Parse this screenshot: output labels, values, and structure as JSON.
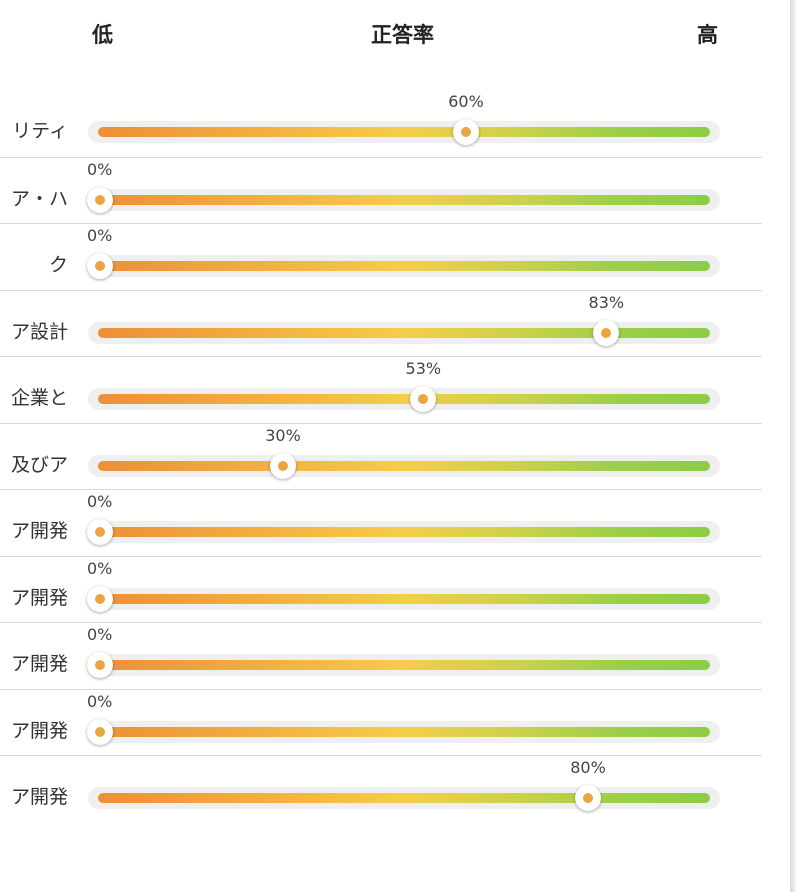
{
  "header": {
    "low_label": "低",
    "title": "正答率",
    "high_label": "高"
  },
  "chart_data": {
    "type": "bar",
    "title": "正答率",
    "scale_low_label": "低",
    "scale_high_label": "高",
    "xlim": [
      0,
      100
    ],
    "unit": "%",
    "colors": {
      "low": "#ee8f37",
      "mid": "#f5cd4a",
      "high": "#8ccd46",
      "knob_dot": "#e9a53f"
    },
    "categories": [
      "リティ",
      "ア・ハ",
      "ク",
      "ア設計",
      "企業と",
      "及びア",
      "ア開発",
      "ア開発",
      "ア開発",
      "ア開発",
      "ア開発"
    ],
    "values": [
      60,
      0,
      0,
      83,
      53,
      30,
      0,
      0,
      0,
      0,
      80
    ],
    "value_labels": [
      "60%",
      "0%",
      "0%",
      "83%",
      "53%",
      "30%",
      "0%",
      "0%",
      "0%",
      "0%",
      "80%"
    ]
  }
}
